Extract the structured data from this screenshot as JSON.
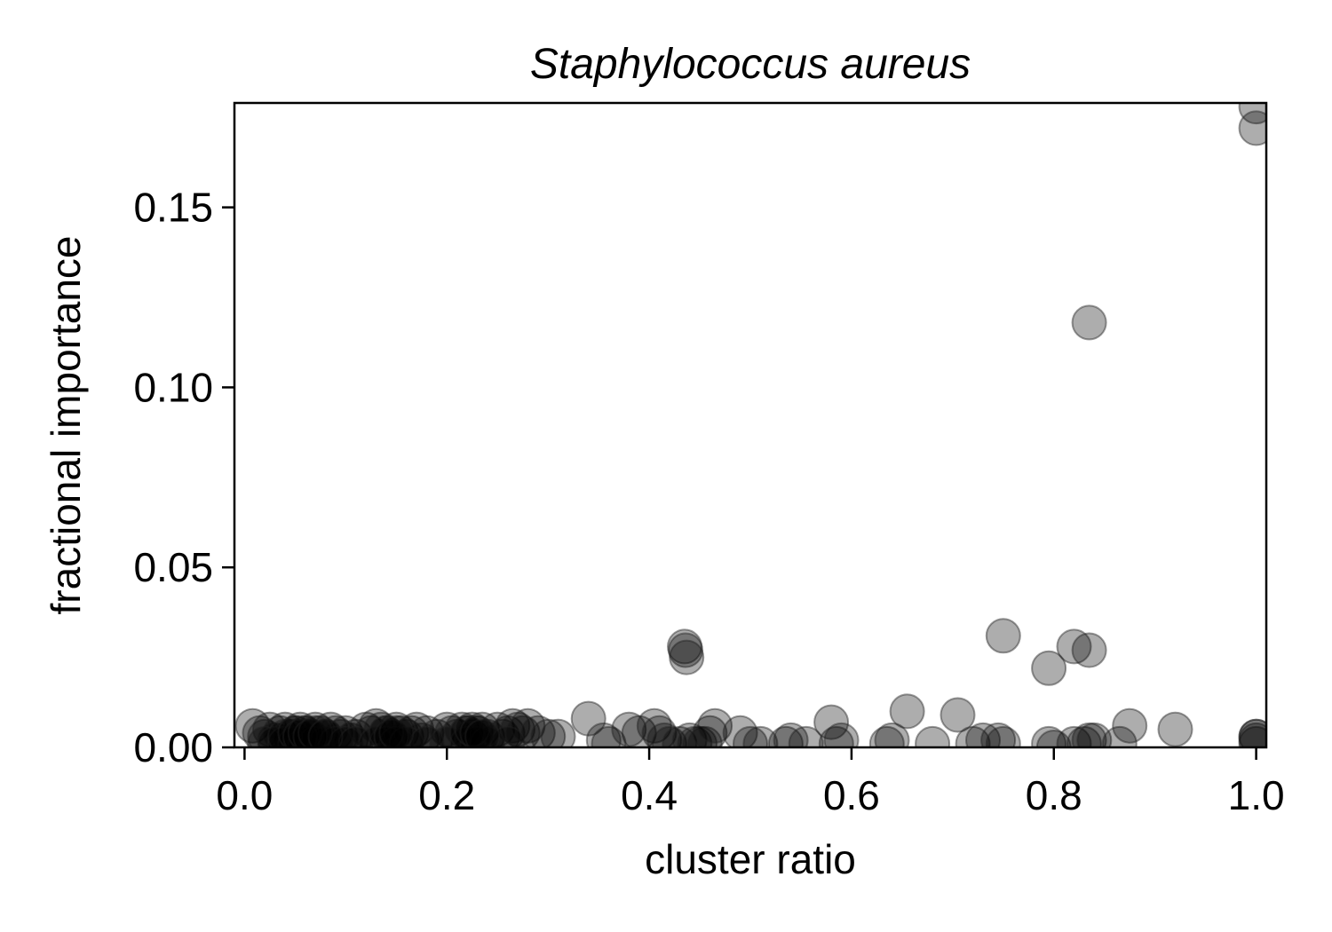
{
  "chart_data": {
    "type": "scatter",
    "title": "Staphylococcus aureus",
    "xlabel": "cluster ratio",
    "ylabel": "fractional importance",
    "xlim": [
      -0.01,
      1.01
    ],
    "ylim": [
      0.0,
      0.179
    ],
    "xticks": [
      0.0,
      0.2,
      0.4,
      0.6,
      0.8,
      1.0
    ],
    "xtick_labels": [
      "0.0",
      "0.2",
      "0.4",
      "0.6",
      "0.8",
      "1.0"
    ],
    "yticks": [
      0.0,
      0.05,
      0.1,
      0.15
    ],
    "ytick_labels": [
      "0.00",
      "0.05",
      "0.10",
      "0.15"
    ],
    "grid": false,
    "marker_color": "#000000",
    "marker_edge_color": "#222222",
    "marker_alpha": 0.32,
    "series": [
      {
        "x": [
          0.008,
          0.015,
          0.02,
          0.025,
          0.03,
          0.035,
          0.04,
          0.045,
          0.05,
          0.055,
          0.06,
          0.065,
          0.07,
          0.075,
          0.08,
          0.085,
          0.09,
          0.095,
          0.1,
          0.105,
          0.11,
          0.12,
          0.125,
          0.13,
          0.135,
          0.14,
          0.145,
          0.15,
          0.155,
          0.16,
          0.165,
          0.17,
          0.175,
          0.18,
          0.19,
          0.2,
          0.205,
          0.21,
          0.215,
          0.22,
          0.225,
          0.23,
          0.235,
          0.24,
          0.25,
          0.255,
          0.26,
          0.265,
          0.27,
          0.275,
          0.28,
          0.29,
          0.3,
          0.31,
          0.02,
          0.03,
          0.04,
          0.05,
          0.06,
          0.07,
          0.08,
          0.09,
          0.1,
          0.11,
          0.13,
          0.14,
          0.15,
          0.16,
          0.18,
          0.2,
          0.22,
          0.23,
          0.24,
          0.26,
          0.04,
          0.05,
          0.055,
          0.06,
          0.065,
          0.07,
          0.08,
          0.14,
          0.145,
          0.15,
          0.22,
          0.225,
          0.23,
          0.235,
          0.34,
          0.355,
          0.36,
          0.38,
          0.39,
          0.405,
          0.41,
          0.415,
          0.42,
          0.43,
          0.44,
          0.445,
          0.45,
          0.455,
          0.46,
          0.465,
          0.49,
          0.5,
          0.51,
          0.535,
          0.54,
          0.555,
          0.58,
          0.585,
          0.59,
          0.635,
          0.64,
          0.655,
          0.68,
          0.705,
          0.72,
          0.73,
          0.745,
          0.75,
          0.795,
          0.8,
          0.82,
          0.83,
          0.835,
          0.84,
          0.865,
          0.875,
          0.92,
          1.0,
          1.0,
          1.0,
          0.435,
          0.436,
          0.437,
          0.75,
          0.795,
          0.82,
          0.835,
          0.835,
          1.0,
          1.0,
          1.0
        ],
        "y": [
          0.006,
          0.004,
          0.003,
          0.005,
          0.002,
          0.004,
          0.005,
          0.003,
          0.004,
          0.005,
          0.004,
          0.003,
          0.005,
          0.004,
          0.003,
          0.005,
          0.004,
          0.003,
          0.004,
          0.002,
          0.003,
          0.005,
          0.004,
          0.006,
          0.005,
          0.004,
          0.003,
          0.005,
          0.004,
          0.003,
          0.004,
          0.005,
          0.002,
          0.004,
          0.003,
          0.005,
          0.004,
          0.003,
          0.005,
          0.004,
          0.003,
          0.004,
          0.005,
          0.003,
          0.005,
          0.003,
          0.004,
          0.006,
          0.005,
          0.004,
          0.006,
          0.004,
          0.003,
          0.003,
          0.001,
          0.001,
          0.001,
          0.001,
          0.001,
          0.001,
          0.001,
          0.001,
          0.001,
          0.001,
          0.001,
          0.001,
          0.001,
          0.001,
          0.001,
          0.001,
          0.001,
          0.001,
          0.001,
          0.001,
          0.003,
          0.004,
          0.003,
          0.004,
          0.003,
          0.004,
          0.003,
          0.004,
          0.003,
          0.004,
          0.004,
          0.005,
          0.004,
          0.003,
          0.008,
          0.002,
          0.001,
          0.005,
          0.004,
          0.006,
          0.004,
          0.002,
          0.001,
          0.001,
          0.002,
          0.001,
          0.001,
          0.001,
          0.004,
          0.006,
          0.004,
          0.001,
          0.001,
          0.001,
          0.002,
          0.001,
          0.007,
          0.001,
          0.002,
          0.001,
          0.002,
          0.01,
          0.001,
          0.009,
          0.001,
          0.002,
          0.002,
          0.001,
          0.001,
          0.0,
          0.001,
          0.001,
          0.002,
          0.002,
          0.001,
          0.006,
          0.005,
          0.003,
          0.001,
          0.002,
          0.028,
          0.027,
          0.025,
          0.031,
          0.022,
          0.028,
          0.027,
          0.118,
          0.178,
          0.172,
          0.003
        ]
      }
    ]
  }
}
